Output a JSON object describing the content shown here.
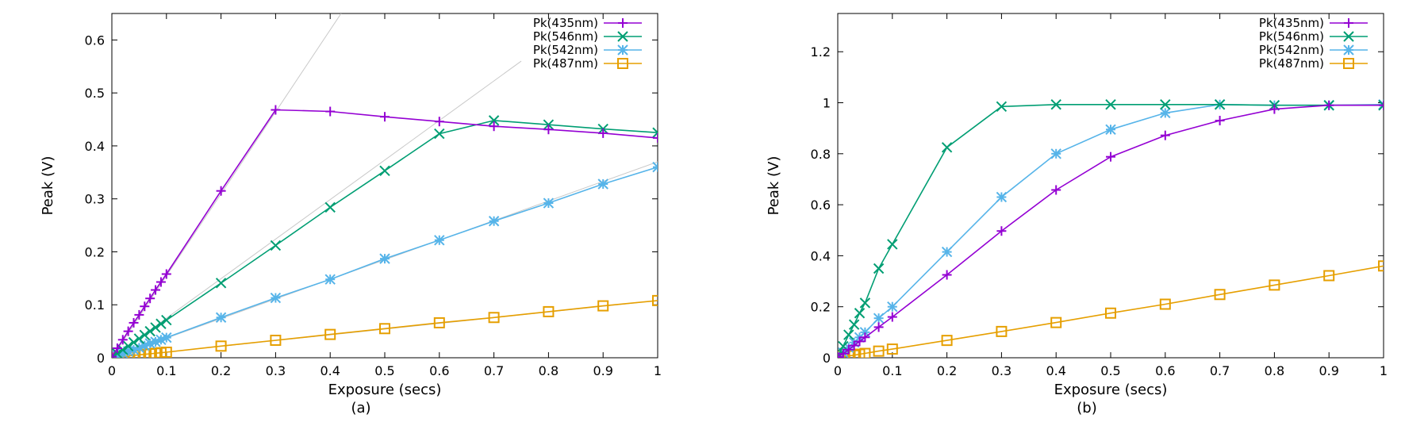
{
  "colors": {
    "Pk(435nm)": "#9400d3",
    "Pk(546nm)": "#009e73",
    "Pk(542nm)": "#56b4e9",
    "Pk(487nm)": "#e69f00",
    "fit": "#c8c8c8"
  },
  "chart_data": [
    {
      "type": "line",
      "caption": "(a)",
      "xlabel": "Exposure (secs)",
      "ylabel": "Peak (V)",
      "xlim": [
        0,
        1
      ],
      "ylim": [
        0,
        0.65
      ],
      "xticks": [
        "0",
        "0.1",
        "0.2",
        "0.3",
        "0.4",
        "0.5",
        "0.6",
        "0.7",
        "0.8",
        "0.9",
        "1"
      ],
      "xtick_values": [
        0,
        0.1,
        0.2,
        0.3,
        0.4,
        0.5,
        0.6,
        0.7,
        0.8,
        0.9,
        1
      ],
      "yticks": [
        "0",
        "0.1",
        "0.2",
        "0.3",
        "0.4",
        "0.5",
        "0.6"
      ],
      "ytick_values": [
        0,
        0.1,
        0.2,
        0.3,
        0.4,
        0.5,
        0.6
      ],
      "legend": "top-right",
      "series": [
        {
          "name": "Pk(435nm)",
          "marker": "plus",
          "x": [
            0,
            0.01,
            0.02,
            0.03,
            0.04,
            0.05,
            0.06,
            0.07,
            0.08,
            0.09,
            0.1,
            0.2,
            0.3,
            0.4,
            0.5,
            0.6,
            0.7,
            0.8,
            0.9,
            1
          ],
          "y": [
            0.002,
            0.018,
            0.034,
            0.05,
            0.066,
            0.081,
            0.097,
            0.112,
            0.128,
            0.143,
            0.158,
            0.315,
            0.468,
            0.465,
            0.455,
            0.446,
            0.437,
            0.431,
            0.424,
            0.415
          ]
        },
        {
          "name": "Pk(546nm)",
          "marker": "x",
          "x": [
            0,
            0.01,
            0.02,
            0.03,
            0.04,
            0.05,
            0.06,
            0.07,
            0.08,
            0.09,
            0.1,
            0.2,
            0.3,
            0.4,
            0.5,
            0.6,
            0.7,
            0.8,
            0.9,
            1
          ],
          "y": [
            0.001,
            0.008,
            0.015,
            0.022,
            0.029,
            0.036,
            0.043,
            0.05,
            0.057,
            0.064,
            0.071,
            0.141,
            0.212,
            0.284,
            0.353,
            0.423,
            0.448,
            0.44,
            0.432,
            0.425
          ]
        },
        {
          "name": "Pk(542nm)",
          "marker": "star",
          "x": [
            0,
            0.01,
            0.02,
            0.03,
            0.04,
            0.05,
            0.06,
            0.07,
            0.08,
            0.09,
            0.1,
            0.2,
            0.3,
            0.4,
            0.5,
            0.6,
            0.7,
            0.8,
            0.9,
            1
          ],
          "y": [
            0.001,
            0.004,
            0.008,
            0.012,
            0.015,
            0.019,
            0.023,
            0.027,
            0.03,
            0.034,
            0.038,
            0.076,
            0.113,
            0.148,
            0.187,
            0.222,
            0.258,
            0.292,
            0.328,
            0.36
          ]
        },
        {
          "name": "Pk(487nm)",
          "marker": "square",
          "x": [
            0,
            0.01,
            0.02,
            0.03,
            0.04,
            0.05,
            0.06,
            0.07,
            0.08,
            0.09,
            0.1,
            0.2,
            0.3,
            0.4,
            0.5,
            0.6,
            0.7,
            0.8,
            0.9,
            1
          ],
          "y": [
            0.0005,
            0.0015,
            0.0025,
            0.0035,
            0.0045,
            0.0055,
            0.0065,
            0.0075,
            0.0085,
            0.0095,
            0.0105,
            0.022,
            0.033,
            0.044,
            0.055,
            0.066,
            0.076,
            0.087,
            0.098,
            0.108
          ]
        }
      ],
      "fit_lines": [
        {
          "x": [
            0,
            0.42
          ],
          "y": [
            0,
            0.65
          ]
        },
        {
          "x": [
            0,
            0.75
          ],
          "y": [
            0,
            0.56
          ]
        },
        {
          "x": [
            0,
            1
          ],
          "y": [
            0,
            0.37
          ]
        },
        {
          "x": [
            0,
            1
          ],
          "y": [
            0,
            0.108
          ]
        }
      ]
    },
    {
      "type": "line",
      "caption": "(b)",
      "xlabel": "Exposure (secs)",
      "ylabel": "Peak (V)",
      "xlim": [
        0,
        1
      ],
      "ylim": [
        0,
        1.35
      ],
      "xticks": [
        "0",
        "0.1",
        "0.2",
        "0.3",
        "0.4",
        "0.5",
        "0.6",
        "0.7",
        "0.8",
        "0.9",
        "1"
      ],
      "xtick_values": [
        0,
        0.1,
        0.2,
        0.3,
        0.4,
        0.5,
        0.6,
        0.7,
        0.8,
        0.9,
        1
      ],
      "yticks": [
        "0",
        "0.2",
        "0.4",
        "0.6",
        "0.8",
        "1",
        "1.2"
      ],
      "ytick_values": [
        0,
        0.2,
        0.4,
        0.6,
        0.8,
        1,
        1.2
      ],
      "legend": "top-right",
      "series": [
        {
          "name": "Pk(435nm)",
          "marker": "plus",
          "x": [
            0,
            0.01,
            0.02,
            0.03,
            0.04,
            0.05,
            0.075,
            0.1,
            0.2,
            0.3,
            0.4,
            0.5,
            0.6,
            0.7,
            0.8,
            0.9,
            1
          ],
          "y": [
            0.003,
            0.016,
            0.032,
            0.048,
            0.064,
            0.08,
            0.12,
            0.16,
            0.325,
            0.497,
            0.658,
            0.788,
            0.872,
            0.93,
            0.975,
            0.99,
            0.99
          ]
        },
        {
          "name": "Pk(546nm)",
          "marker": "x",
          "x": [
            0,
            0.01,
            0.02,
            0.03,
            0.04,
            0.05,
            0.075,
            0.1,
            0.2,
            0.3,
            0.4,
            0.5,
            0.6,
            0.7,
            0.8,
            0.9,
            1
          ],
          "y": [
            0.005,
            0.045,
            0.09,
            0.13,
            0.175,
            0.215,
            0.35,
            0.445,
            0.825,
            0.985,
            0.993,
            0.993,
            0.993,
            0.993,
            0.99,
            0.99,
            0.99
          ]
        },
        {
          "name": "Pk(542nm)",
          "marker": "star",
          "x": [
            0,
            0.01,
            0.02,
            0.03,
            0.04,
            0.05,
            0.075,
            0.1,
            0.2,
            0.3,
            0.4,
            0.5,
            0.6,
            0.7,
            0.8,
            0.9,
            1
          ],
          "y": [
            0.004,
            0.02,
            0.04,
            0.06,
            0.08,
            0.1,
            0.155,
            0.2,
            0.415,
            0.63,
            0.8,
            0.895,
            0.96,
            0.993,
            0.99,
            0.99,
            0.993
          ]
        },
        {
          "name": "Pk(487nm)",
          "marker": "square",
          "x": [
            0,
            0.01,
            0.02,
            0.03,
            0.04,
            0.05,
            0.075,
            0.1,
            0.2,
            0.3,
            0.4,
            0.5,
            0.6,
            0.7,
            0.8,
            0.9,
            1
          ],
          "y": [
            0.001,
            0.004,
            0.007,
            0.01,
            0.014,
            0.017,
            0.026,
            0.034,
            0.068,
            0.103,
            0.138,
            0.175,
            0.21,
            0.248,
            0.285,
            0.322,
            0.36
          ]
        }
      ],
      "fit_lines": []
    }
  ]
}
